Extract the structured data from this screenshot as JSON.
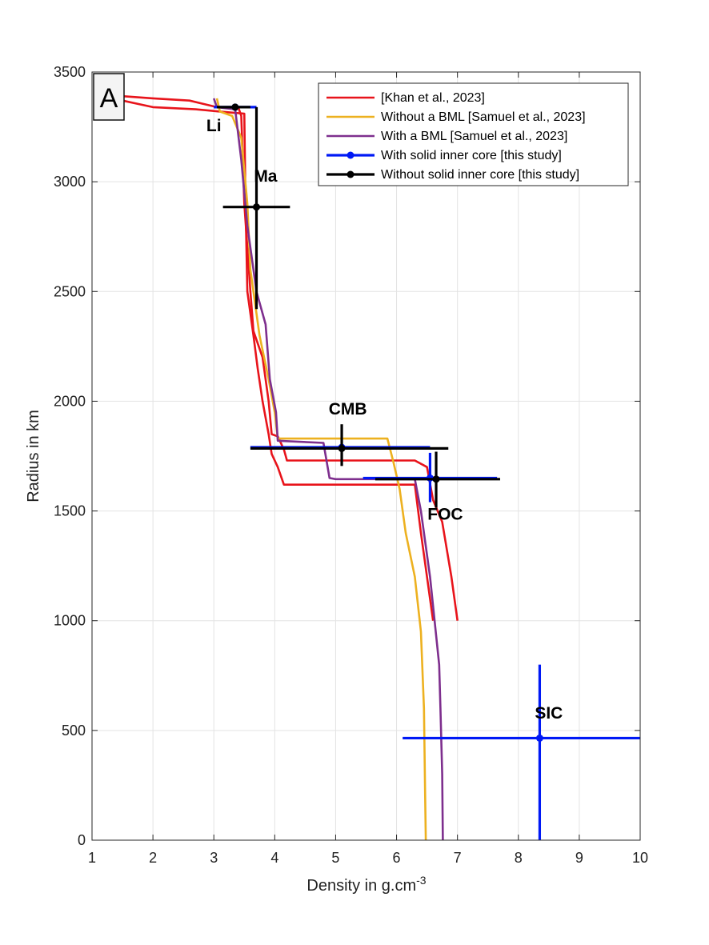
{
  "chart_data": {
    "type": "line",
    "panel_label": "A",
    "xlabel": "Density in g.cm",
    "xlabel_superscript": "-3",
    "ylabel": "Radius in km",
    "xlim": [
      1,
      10
    ],
    "ylim": [
      0,
      3500
    ],
    "xticks": [
      1,
      2,
      3,
      4,
      5,
      6,
      7,
      8,
      9,
      10
    ],
    "yticks": [
      0,
      500,
      1000,
      1500,
      2000,
      2500,
      3000,
      3500
    ],
    "grid": true,
    "legend_position": "top-right",
    "series": [
      {
        "name": "[Khan et al., 2023]",
        "color": "#e8141b",
        "style": "line",
        "lines": [
          [
            [
              1.5,
              3390
            ],
            [
              2.0,
              3380
            ],
            [
              2.6,
              3370
            ],
            [
              3.05,
              3340
            ],
            [
              3.4,
              3340
            ],
            [
              3.45,
              3300
            ],
            [
              3.5,
              2900
            ],
            [
              3.6,
              2500
            ],
            [
              3.65,
              2320
            ],
            [
              3.8,
              2200
            ],
            [
              3.9,
              2000
            ],
            [
              3.95,
              1850
            ],
            [
              4.05,
              1840
            ],
            [
              4.15,
              1780
            ],
            [
              4.2,
              1730
            ],
            [
              5.3,
              1730
            ],
            [
              6.3,
              1730
            ],
            [
              6.5,
              1700
            ],
            [
              6.6,
              1550
            ],
            [
              6.75,
              1450
            ],
            [
              6.9,
              1200
            ],
            [
              7.0,
              1000
            ]
          ],
          [
            [
              1.5,
              3370
            ],
            [
              2.0,
              3340
            ],
            [
              2.7,
              3330
            ],
            [
              3.1,
              3320
            ],
            [
              3.5,
              3310
            ],
            [
              3.52,
              2900
            ],
            [
              3.55,
              2500
            ],
            [
              3.65,
              2300
            ],
            [
              3.72,
              2150
            ],
            [
              3.8,
              2000
            ],
            [
              3.9,
              1850
            ],
            [
              3.95,
              1760
            ],
            [
              4.05,
              1700
            ],
            [
              4.15,
              1620
            ],
            [
              5.0,
              1620
            ],
            [
              6.3,
              1620
            ],
            [
              6.4,
              1400
            ],
            [
              6.55,
              1100
            ],
            [
              6.6,
              1000
            ]
          ]
        ]
      },
      {
        "name": "Without a BML [Samuel et al., 2023]",
        "color": "#edb120",
        "style": "line",
        "lines": [
          [
            [
              3.05,
              3380
            ],
            [
              3.1,
              3320
            ],
            [
              3.3,
              3300
            ],
            [
              3.45,
              3200
            ],
            [
              3.55,
              2900
            ],
            [
              3.6,
              2600
            ],
            [
              3.75,
              2300
            ],
            [
              3.9,
              2100
            ],
            [
              4.0,
              1950
            ],
            [
              4.05,
              1830
            ],
            [
              5.85,
              1830
            ],
            [
              5.95,
              1720
            ],
            [
              6.05,
              1600
            ],
            [
              6.15,
              1400
            ],
            [
              6.3,
              1200
            ],
            [
              6.4,
              950
            ],
            [
              6.45,
              600
            ],
            [
              6.47,
              200
            ],
            [
              6.48,
              0
            ]
          ]
        ]
      },
      {
        "name": "With a BML [Samuel et al., 2023]",
        "color": "#7e2f8e",
        "style": "line",
        "lines": [
          [
            [
              3.0,
              3380
            ],
            [
              3.05,
              3340
            ],
            [
              3.35,
              3330
            ],
            [
              3.45,
              3100
            ],
            [
              3.55,
              2800
            ],
            [
              3.7,
              2500
            ],
            [
              3.85,
              2350
            ],
            [
              3.92,
              2100
            ],
            [
              4.02,
              1950
            ],
            [
              4.05,
              1820
            ],
            [
              4.8,
              1810
            ],
            [
              4.9,
              1650
            ],
            [
              5.0,
              1645
            ],
            [
              6.3,
              1645
            ],
            [
              6.4,
              1500
            ],
            [
              6.55,
              1200
            ],
            [
              6.7,
              800
            ],
            [
              6.72,
              600
            ],
            [
              6.75,
              300
            ],
            [
              6.76,
              0
            ]
          ]
        ]
      },
      {
        "name": "With solid inner core [this study]",
        "color": "#0019f5",
        "style": "errorbar",
        "points": [
          {
            "x": 3.35,
            "y": 3340,
            "x_err": [
              3.0,
              3.7
            ],
            "y_err": [
              3340,
              3340
            ]
          },
          {
            "x": 6.55,
            "y": 1650,
            "x_err": [
              5.45,
              7.65
            ],
            "y_err": [
              1540,
              1765
            ]
          },
          {
            "x": 5.1,
            "y": 1790,
            "x_err": [
              3.6,
              6.55
            ],
            "y_err": [
              1790,
              1790
            ]
          },
          {
            "x": 8.35,
            "y": 465,
            "x_err": [
              6.1,
              10.0
            ],
            "y_err": [
              0,
              800
            ]
          }
        ]
      },
      {
        "name": "Without solid inner core [this study]",
        "color": "#000000",
        "style": "errorbar",
        "points": [
          {
            "x": 3.35,
            "y": 3340,
            "x_err": [
              3.05,
              3.6
            ],
            "y_err": [
              3340,
              3340
            ]
          },
          {
            "x": 3.7,
            "y": 2885,
            "x_err": [
              3.15,
              4.25
            ],
            "y_err": [
              2420,
              3340
            ]
          },
          {
            "x": 5.1,
            "y": 1785,
            "x_err": [
              3.6,
              6.85
            ],
            "y_err": [
              1705,
              1895
            ]
          },
          {
            "x": 6.65,
            "y": 1645,
            "x_err": [
              5.65,
              7.7
            ],
            "y_err": [
              1515,
              1770
            ]
          }
        ]
      }
    ],
    "annotations": [
      {
        "text": "Li",
        "x": 3.0,
        "y": 3230
      },
      {
        "text": "Ma",
        "x": 3.85,
        "y": 3000
      },
      {
        "text": "CMB",
        "x": 5.2,
        "y": 1940
      },
      {
        "text": "FOC",
        "x": 6.8,
        "y": 1460
      },
      {
        "text": "SIC",
        "x": 8.5,
        "y": 555
      }
    ]
  }
}
